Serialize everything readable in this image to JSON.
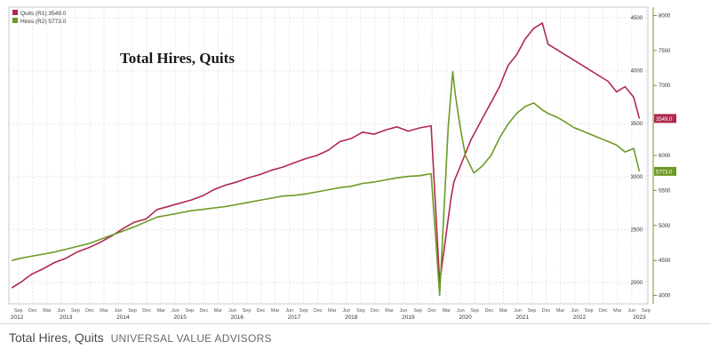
{
  "chart_data": {
    "type": "line",
    "title": "Total Hires, Quits",
    "legend": [
      {
        "label": "Quits (R1) 3549.0",
        "color": "#b0294c"
      },
      {
        "label": "Hires (R2) 5773.0",
        "color": "#6e9a27"
      }
    ],
    "series": [
      {
        "name": "Quits",
        "axis": "R1",
        "color": "#b0294c",
        "last_label": "3549.0",
        "x": [
          2012.55,
          2012.7,
          2012.9,
          2013.1,
          2013.3,
          2013.5,
          2013.7,
          2013.9,
          2014.1,
          2014.3,
          2014.5,
          2014.7,
          2014.9,
          2015.1,
          2015.3,
          2015.5,
          2015.7,
          2015.9,
          2016.1,
          2016.3,
          2016.5,
          2016.7,
          2016.9,
          2017.1,
          2017.3,
          2017.5,
          2017.7,
          2017.9,
          2018.1,
          2018.3,
          2018.5,
          2018.7,
          2018.9,
          2019.1,
          2019.3,
          2019.5,
          2019.7,
          2019.9,
          2020.05,
          2020.15,
          2020.25,
          2020.3,
          2020.45,
          2020.6,
          2020.8,
          2020.95,
          2021.1,
          2021.25,
          2021.4,
          2021.55,
          2021.7,
          2021.85,
          2021.95,
          2022.1,
          2022.25,
          2022.4,
          2022.55,
          2022.7,
          2022.85,
          2023.0,
          2023.15,
          2023.3,
          2023.45,
          2023.55
        ],
        "values": [
          1950,
          2000,
          2080,
          2130,
          2190,
          2230,
          2290,
          2330,
          2380,
          2440,
          2510,
          2570,
          2600,
          2690,
          2720,
          2750,
          2780,
          2820,
          2880,
          2920,
          2950,
          2990,
          3020,
          3060,
          3090,
          3130,
          3170,
          3200,
          3250,
          3330,
          3360,
          3420,
          3400,
          3440,
          3470,
          3430,
          3460,
          3480,
          2000,
          2400,
          2800,
          2950,
          3150,
          3350,
          3550,
          3700,
          3850,
          4050,
          4150,
          4300,
          4400,
          4450,
          4250,
          4200,
          4150,
          4100,
          4050,
          4000,
          3950,
          3900,
          3800,
          3850,
          3750,
          3549
        ]
      },
      {
        "name": "Hires",
        "axis": "R2",
        "color": "#6e9a27",
        "last_label": "5773.0",
        "x": [
          2012.55,
          2012.7,
          2012.9,
          2013.1,
          2013.3,
          2013.5,
          2013.7,
          2013.9,
          2014.1,
          2014.3,
          2014.5,
          2014.7,
          2014.9,
          2015.1,
          2015.3,
          2015.5,
          2015.7,
          2015.9,
          2016.1,
          2016.3,
          2016.5,
          2016.7,
          2016.9,
          2017.1,
          2017.3,
          2017.5,
          2017.7,
          2017.9,
          2018.1,
          2018.3,
          2018.5,
          2018.7,
          2018.9,
          2019.1,
          2019.3,
          2019.5,
          2019.7,
          2019.9,
          2020.05,
          2020.2,
          2020.28,
          2020.32,
          2020.4,
          2020.5,
          2020.65,
          2020.8,
          2020.95,
          2021.1,
          2021.25,
          2021.4,
          2021.55,
          2021.7,
          2021.85,
          2021.95,
          2022.1,
          2022.25,
          2022.4,
          2022.55,
          2022.7,
          2022.85,
          2023.0,
          2023.15,
          2023.3,
          2023.45,
          2023.55
        ],
        "values": [
          4500,
          4530,
          4560,
          4590,
          4620,
          4660,
          4700,
          4740,
          4800,
          4860,
          4920,
          4980,
          5050,
          5120,
          5150,
          5180,
          5210,
          5230,
          5250,
          5270,
          5300,
          5330,
          5360,
          5390,
          5420,
          5430,
          5450,
          5480,
          5510,
          5540,
          5560,
          5600,
          5620,
          5650,
          5680,
          5700,
          5710,
          5740,
          4000,
          6400,
          7200,
          6900,
          6450,
          6000,
          5750,
          5850,
          6000,
          6250,
          6450,
          6600,
          6700,
          6750,
          6650,
          6600,
          6550,
          6480,
          6400,
          6350,
          6300,
          6250,
          6200,
          6150,
          6050,
          6100,
          5773
        ]
      }
    ],
    "axes": {
      "x": {
        "range": [
          2012.5,
          2023.7
        ],
        "year_labels": [
          "2012",
          "2013",
          "2014",
          "2015",
          "2016",
          "2017",
          "2018",
          "2019",
          "2020",
          "2021",
          "2022",
          "2023"
        ],
        "month_labels": [
          "Dec",
          "Mar",
          "Jun",
          "Sep"
        ]
      },
      "y_left_R1": {
        "range": [
          1800,
          4600
        ],
        "ticks": [
          2000,
          2500,
          3000,
          3500,
          4000,
          4500
        ]
      },
      "y_right_R2": {
        "range": [
          3880,
          8120
        ],
        "ticks": [
          4000,
          4500,
          5000,
          5500,
          6000,
          6500,
          7000,
          7500,
          8000
        ]
      }
    },
    "grid": true
  },
  "caption": {
    "title": "Total Hires, Quits",
    "source": "UNIVERSAL VALUE ADVISORS"
  }
}
